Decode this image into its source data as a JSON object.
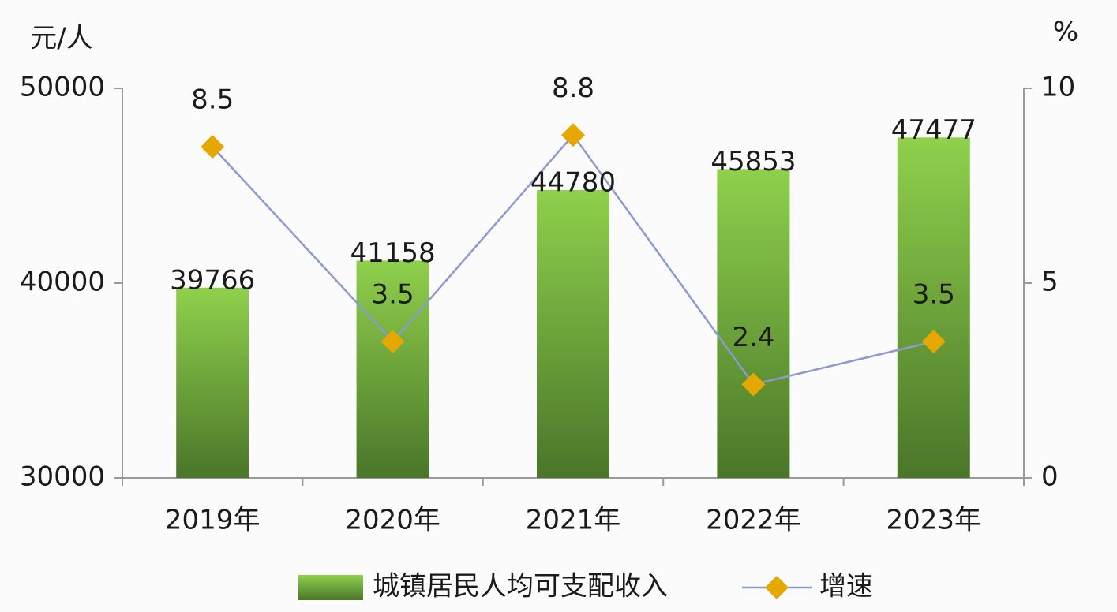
{
  "chart_data": {
    "type": "bar_line",
    "y_label": "元/人",
    "y2_label": "%",
    "categories": [
      "2019年",
      "2020年",
      "2021年",
      "2022年",
      "2023年"
    ],
    "series": [
      {
        "name": "城镇居民人均可支配收入",
        "type": "bar",
        "color": "#8fd04c",
        "values": [
          39766,
          41158,
          44780,
          45853,
          47477
        ]
      },
      {
        "name": "增速",
        "type": "line",
        "axis": "y2",
        "color": "#8c9ad0",
        "marker_color": "#e6a800",
        "values": [
          8.5,
          3.5,
          8.8,
          2.4,
          3.5
        ]
      }
    ],
    "ylim": [
      30000,
      50000
    ],
    "yticks": [
      30000,
      40000,
      50000
    ],
    "y2lim": [
      0,
      10
    ],
    "y2ticks": [
      0,
      5,
      10
    ],
    "legend": "bottom"
  }
}
